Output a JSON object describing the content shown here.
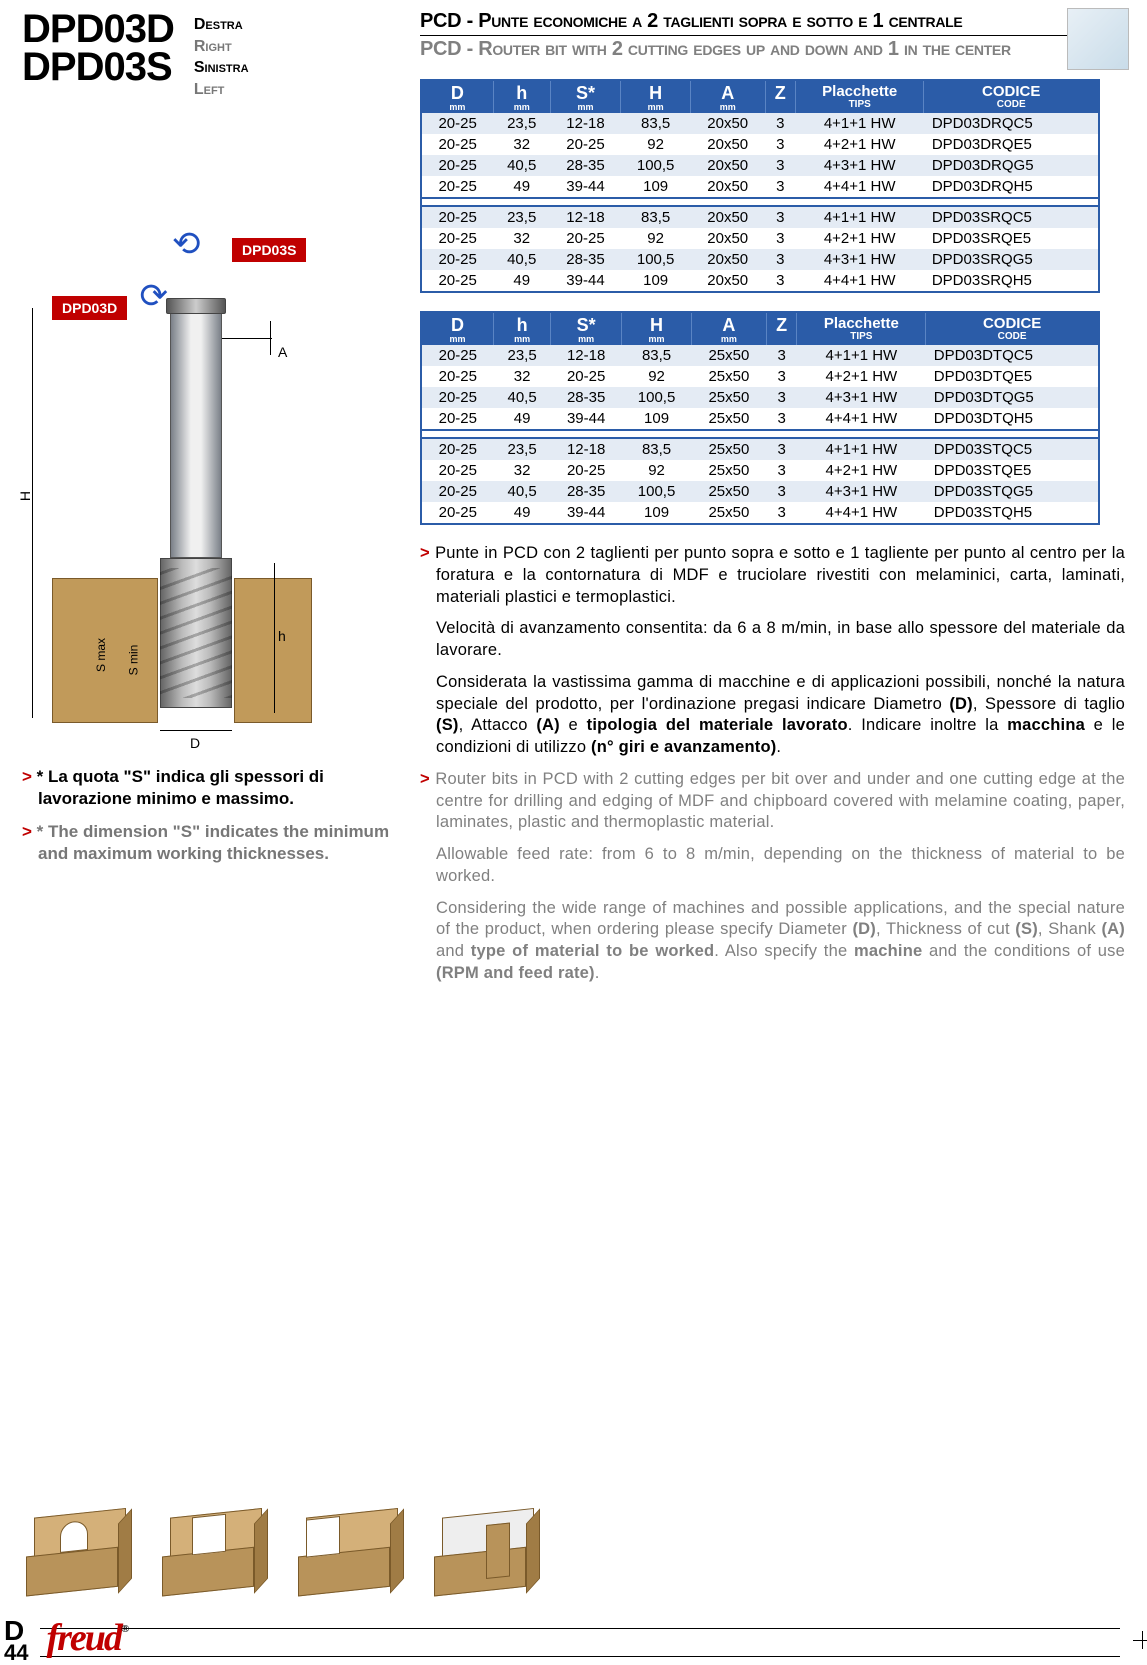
{
  "header": {
    "model1": "DPD03D",
    "model2": "DPD03S",
    "dir_it1": "Destra",
    "dir_en1": "Right",
    "dir_it2": "Sinistra",
    "dir_en2": "Left",
    "title_it": "PCD - Punte economiche a 2 taglienti sopra e sotto e 1 centrale",
    "title_en": "PCD - Router bit with 2 cutting edges up and down and 1 in the center"
  },
  "diagram": {
    "label_s": "DPD03S",
    "label_d": "DPD03D",
    "dim_A": "A",
    "dim_H": "H",
    "dim_h": "h",
    "dim_D": "D",
    "dim_smax": "S max",
    "dim_smin": "S min",
    "colors": {
      "label_bg": "#c00000",
      "arrow": "#2050c0",
      "wood": "#c19a5a"
    }
  },
  "notes": {
    "it": "* La quota \"S\" indica gli spessori di lavorazione minimo e massimo.",
    "en": "* The dimension \"S\" indicates the minimum and maximum working thicknesses."
  },
  "columns": [
    {
      "main": "D",
      "sub": "mm"
    },
    {
      "main": "h",
      "sub": "mm"
    },
    {
      "main": "S*",
      "sub": "mm"
    },
    {
      "main": "H",
      "sub": "mm"
    },
    {
      "main": "A",
      "sub": "mm"
    },
    {
      "main": "Z",
      "sub": ""
    },
    {
      "main": "Placchette",
      "sub": "tips"
    },
    {
      "main": "CODICE",
      "sub": "code"
    }
  ],
  "table1": {
    "groups": [
      [
        [
          "20-25",
          "23,5",
          "12-18",
          "83,5",
          "20x50",
          "3",
          "4+1+1 HW",
          "DPD03DRQC5"
        ],
        [
          "20-25",
          "32",
          "20-25",
          "92",
          "20x50",
          "3",
          "4+2+1 HW",
          "DPD03DRQE5"
        ],
        [
          "20-25",
          "40,5",
          "28-35",
          "100,5",
          "20x50",
          "3",
          "4+3+1 HW",
          "DPD03DRQG5"
        ],
        [
          "20-25",
          "49",
          "39-44",
          "109",
          "20x50",
          "3",
          "4+4+1 HW",
          "DPD03DRQH5"
        ]
      ],
      [
        [
          "20-25",
          "23,5",
          "12-18",
          "83,5",
          "20x50",
          "3",
          "4+1+1 HW",
          "DPD03SRQC5"
        ],
        [
          "20-25",
          "32",
          "20-25",
          "92",
          "20x50",
          "3",
          "4+2+1 HW",
          "DPD03SRQE5"
        ],
        [
          "20-25",
          "40,5",
          "28-35",
          "100,5",
          "20x50",
          "3",
          "4+3+1 HW",
          "DPD03SRQG5"
        ],
        [
          "20-25",
          "49",
          "39-44",
          "109",
          "20x50",
          "3",
          "4+4+1 HW",
          "DPD03SRQH5"
        ]
      ]
    ]
  },
  "table2": {
    "groups": [
      [
        [
          "20-25",
          "23,5",
          "12-18",
          "83,5",
          "25x50",
          "3",
          "4+1+1 HW",
          "DPD03DTQC5"
        ],
        [
          "20-25",
          "32",
          "20-25",
          "92",
          "25x50",
          "3",
          "4+2+1 HW",
          "DPD03DTQE5"
        ],
        [
          "20-25",
          "40,5",
          "28-35",
          "100,5",
          "25x50",
          "3",
          "4+3+1 HW",
          "DPD03DTQG5"
        ],
        [
          "20-25",
          "49",
          "39-44",
          "109",
          "25x50",
          "3",
          "4+4+1 HW",
          "DPD03DTQH5"
        ]
      ],
      [
        [
          "20-25",
          "23,5",
          "12-18",
          "83,5",
          "25x50",
          "3",
          "4+1+1 HW",
          "DPD03STQC5"
        ],
        [
          "20-25",
          "32",
          "20-25",
          "92",
          "25x50",
          "3",
          "4+2+1 HW",
          "DPD03STQE5"
        ],
        [
          "20-25",
          "40,5",
          "28-35",
          "100,5",
          "25x50",
          "3",
          "4+3+1 HW",
          "DPD03STQG5"
        ],
        [
          "20-25",
          "49",
          "39-44",
          "109",
          "25x50",
          "3",
          "4+4+1 HW",
          "DPD03STQH5"
        ]
      ]
    ]
  },
  "body": {
    "it1": "Punte in PCD con 2 taglienti per punto sopra e sotto e 1 tagliente per punto al centro per la foratura e la contornatura di MDF e truciolare rivestiti con melaminici, carta, laminati, materiali plastici e termoplastici.",
    "it2": "Velocità di avanzamento consentita: da 6 a 8 m/min, in base allo spessore del materiale da lavorare.",
    "it3": "Considerata la vastissima gamma di macchine e di applicazioni possibili, nonché la natura speciale del prodotto, per l'ordinazione pregasi indicare Diametro ",
    "it3_b1": "(D)",
    "it3_m1": ", Spessore di taglio ",
    "it3_b2": "(S)",
    "it3_m2": ", Attacco ",
    "it3_b3": "(A)",
    "it3_m3": " e ",
    "it3_b4": "tipologia del materiale lavorato",
    "it3_m4": ". Indicare inoltre la ",
    "it3_b5": "macchina",
    "it3_m5": " e le condizioni di utilizzo ",
    "it3_b6": "(n° giri e avanzamento)",
    "it3_end": ".",
    "en1": "Router bits in PCD with 2 cutting edges per bit over and under and one cutting edge at the centre for drilling and edging of MDF and chipboard covered with melamine coating, paper, laminates, plastic and thermoplastic material.",
    "en2": "Allowable feed rate: from 6 to 8 m/min, depending on the thickness of material to be worked.",
    "en3": "Considering the wide range of machines and possible applications, and the special nature of the product, when ordering please specify Diameter ",
    "en3_b1": "(D)",
    "en3_m1": ", Thickness of cut ",
    "en3_b2": "(S)",
    "en3_m2": ", Shank ",
    "en3_b3": "(A)",
    "en3_m3": " and ",
    "en3_b4": "type of material to be worked",
    "en3_m4": ". Also specify the ",
    "en3_b5": "machine",
    "en3_m5": " and the conditions of use ",
    "en3_b6": "(RPM and feed rate)",
    "en3_end": "."
  },
  "footer": {
    "section": "D",
    "page": "44",
    "brand": "freud"
  },
  "style": {
    "header_bg": "#2b5ca8",
    "row_odd": "#e4ebf4",
    "accent": "#c00000",
    "grey": "#808080"
  }
}
